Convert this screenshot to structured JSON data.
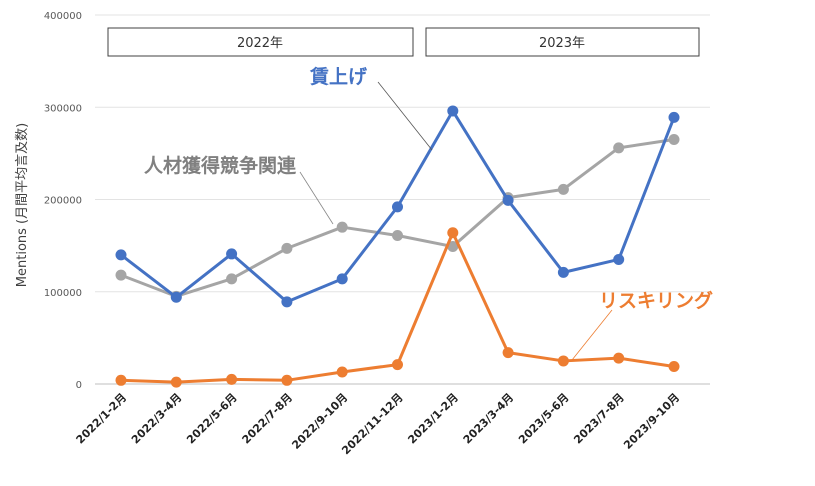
{
  "chart_data": {
    "type": "line",
    "categories": [
      "2022/1-2月",
      "2022/3-4月",
      "2022/5-6月",
      "2022/7-8月",
      "2022/9-10月",
      "2022/11-12月",
      "2023/1-2月",
      "2023/3-4月",
      "2023/5-6月",
      "2023/7-8月",
      "2023/9-10月"
    ],
    "ylabel": "Mentions (月間平均言及数)",
    "ylim": [
      0,
      400000
    ],
    "yticks": [
      "0",
      "100000",
      "200000",
      "300000",
      "400000"
    ],
    "grid": true,
    "periods": [
      "2022年",
      "2023年"
    ],
    "series": [
      {
        "name": "賃上げ",
        "color": "#4472c4",
        "values": [
          140000,
          94000,
          141000,
          89000,
          114000,
          192000,
          296000,
          199000,
          121000,
          135000,
          289000
        ]
      },
      {
        "name": "人材獲得競争関連",
        "color": "#a5a5a5",
        "values": [
          118000,
          95000,
          114000,
          147000,
          170000,
          161000,
          149000,
          202000,
          211000,
          256000,
          265000
        ]
      },
      {
        "name": "リスキリング",
        "color": "#ed7d31",
        "values": [
          4000,
          2000,
          5000,
          4000,
          13000,
          21000,
          164000,
          34000,
          25000,
          28000,
          19000
        ]
      }
    ]
  }
}
